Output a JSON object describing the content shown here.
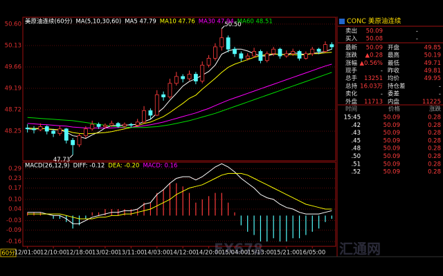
{
  "chart_data": [
    {
      "type": "candlestick",
      "title": "美原油连续(60分)",
      "subtitle": "MA(5,10,30,60)",
      "categories": [
        "12/01:00",
        null,
        null,
        null,
        "12/10:00",
        null,
        null,
        null,
        "12/18:00",
        null,
        null,
        null,
        "13/02:00",
        null,
        null,
        null,
        "13/11:00",
        null,
        null,
        null,
        "14/03:00",
        null,
        null,
        null,
        "14/12:00",
        null,
        null,
        null,
        "14/20:00",
        null,
        null,
        null,
        "15/04:00",
        null,
        null,
        null,
        "15/13:00",
        null,
        null,
        null,
        "15/21:00",
        null,
        null,
        null,
        "16/05:00",
        null,
        null,
        null
      ],
      "open": [
        48.32,
        48.3,
        48.28,
        48.35,
        48.25,
        48.2,
        48.3,
        48.05,
        47.95,
        48.15,
        48.3,
        48.4,
        48.35,
        48.38,
        48.42,
        48.36,
        48.4,
        48.38,
        48.45,
        48.7,
        48.6,
        49.05,
        49.0,
        49.3,
        49.45,
        49.4,
        49.5,
        49.35,
        49.7,
        49.85,
        50.1,
        50.3,
        50.05,
        49.95,
        49.85,
        49.9,
        50.0,
        49.8,
        49.95,
        50.05,
        49.9,
        49.95,
        50.0,
        49.85,
        49.95,
        50.05,
        50.0,
        50.15
      ],
      "high": [
        48.4,
        48.36,
        48.42,
        48.38,
        48.3,
        48.36,
        48.32,
        48.1,
        48.2,
        48.36,
        48.48,
        48.44,
        48.42,
        48.48,
        48.45,
        48.44,
        48.43,
        48.52,
        48.8,
        48.75,
        49.15,
        49.12,
        49.4,
        49.55,
        49.5,
        49.58,
        49.55,
        49.78,
        49.92,
        50.18,
        50.5,
        50.35,
        50.1,
        50.0,
        49.96,
        50.08,
        50.04,
        50.0,
        50.1,
        50.08,
        50.02,
        50.06,
        50.03,
        50.0,
        50.1,
        50.08,
        50.22,
        50.2
      ],
      "low": [
        48.22,
        48.2,
        48.25,
        48.18,
        48.12,
        48.15,
        47.98,
        47.73,
        47.9,
        48.1,
        48.26,
        48.3,
        48.3,
        48.34,
        48.32,
        48.32,
        48.33,
        48.35,
        48.42,
        48.52,
        48.58,
        48.92,
        48.96,
        49.25,
        49.32,
        49.36,
        49.28,
        49.3,
        49.65,
        49.8,
        50.02,
        49.98,
        49.88,
        49.78,
        49.8,
        49.86,
        49.74,
        49.76,
        49.9,
        49.84,
        49.86,
        49.9,
        49.8,
        49.82,
        49.9,
        49.94,
        49.97,
        50.04
      ],
      "close": [
        48.3,
        48.28,
        48.35,
        48.25,
        48.2,
        48.3,
        48.05,
        47.95,
        48.15,
        48.3,
        48.4,
        48.35,
        48.38,
        48.42,
        48.36,
        48.4,
        48.38,
        48.45,
        48.7,
        48.6,
        49.05,
        49.0,
        49.3,
        49.45,
        49.4,
        49.5,
        49.35,
        49.7,
        49.85,
        50.1,
        50.3,
        50.05,
        49.95,
        49.85,
        49.9,
        50.0,
        49.8,
        49.95,
        50.05,
        49.9,
        49.95,
        50.0,
        49.85,
        49.95,
        50.05,
        50.0,
        50.15,
        50.1
      ],
      "up_color": "#ff3c3c",
      "down_color": "#54fcfc",
      "annotations": [
        "50.50",
        "47.73"
      ],
      "series": [
        {
          "legend": "MA5 47.79",
          "color": "#ffffff",
          "values": [
            48.3,
            48.29,
            48.31,
            48.3,
            48.28,
            48.28,
            48.23,
            48.15,
            48.13,
            48.09,
            48.17,
            48.23,
            48.32,
            48.37,
            48.38,
            48.38,
            48.39,
            48.4,
            48.46,
            48.51,
            48.64,
            48.76,
            48.93,
            49.08,
            49.24,
            49.34,
            49.4,
            49.48,
            49.56,
            49.7,
            49.94,
            50.01,
            50.05,
            50.05,
            50.01,
            49.95,
            49.9,
            49.9,
            49.94,
            49.94,
            49.93,
            49.97,
            49.95,
            49.93,
            49.96,
            49.97,
            50.0,
            50.05
          ]
        },
        {
          "legend": "MA10 47.76",
          "color": "#ffff00",
          "values": [
            48.32,
            48.31,
            48.31,
            48.3,
            48.29,
            48.28,
            48.26,
            48.22,
            48.2,
            48.19,
            48.2,
            48.21,
            48.22,
            48.24,
            48.27,
            48.3,
            48.33,
            48.37,
            48.42,
            48.45,
            48.51,
            48.57,
            48.66,
            48.76,
            48.86,
            48.97,
            49.04,
            49.17,
            49.29,
            49.41,
            49.54,
            49.65,
            49.72,
            49.77,
            49.82,
            49.87,
            49.91,
            49.93,
            49.95,
            49.93,
            49.93,
            49.93,
            49.92,
            49.93,
            49.95,
            49.95,
            49.97,
            49.98
          ]
        },
        {
          "legend": "MA30 47.94",
          "color": "#ff00ff",
          "values": [
            48.42,
            48.41,
            48.4,
            48.39,
            48.38,
            48.37,
            48.36,
            48.34,
            48.33,
            48.32,
            48.32,
            48.32,
            48.32,
            48.32,
            48.33,
            48.33,
            48.34,
            48.35,
            48.37,
            48.39,
            48.42,
            48.45,
            48.49,
            48.53,
            48.57,
            48.61,
            48.65,
            48.7,
            48.75,
            48.81,
            48.87,
            48.93,
            48.98,
            49.03,
            49.08,
            49.13,
            49.18,
            49.23,
            49.28,
            49.33,
            49.38,
            49.43,
            49.48,
            49.53,
            49.58,
            49.63,
            49.68,
            49.72
          ]
        },
        {
          "legend": "MA60 48.51",
          "color": "#00e000",
          "values": [
            48.55,
            48.54,
            48.53,
            48.52,
            48.51,
            48.5,
            48.49,
            48.48,
            48.46,
            48.44,
            48.42,
            48.4,
            48.38,
            48.36,
            48.35,
            48.34,
            48.33,
            48.33,
            48.33,
            48.34,
            48.35,
            48.37,
            48.39,
            48.42,
            48.45,
            48.48,
            48.52,
            48.56,
            48.6,
            48.64,
            48.69,
            48.74,
            48.79,
            48.84,
            48.89,
            48.94,
            48.99,
            49.04,
            49.09,
            49.14,
            49.19,
            49.24,
            49.29,
            49.34,
            49.39,
            49.44,
            49.49,
            49.54
          ]
        }
      ],
      "ylim": [
        47.6,
        50.75
      ],
      "yticks": [
        {
          "value": 50.6,
          "label": "50.60"
        },
        {
          "value": 50.13,
          "label": "50.13"
        },
        {
          "value": 49.66,
          "label": "49.66"
        },
        {
          "value": 49.19,
          "label": "49.19"
        },
        {
          "value": 48.72,
          "label": "48.72"
        },
        {
          "value": 48.25,
          "label": "48.25"
        }
      ],
      "grid": true
    },
    {
      "type": "macd",
      "title": "MACD(26,12,9)",
      "lines": [
        {
          "legend": "DIFF: -0.12",
          "color": "#ffffff",
          "values": [
            0.02,
            0.02,
            0.02,
            0.01,
            0.0,
            0.0,
            -0.02,
            -0.05,
            -0.05,
            -0.03,
            -0.01,
            0.0,
            0.01,
            0.02,
            0.02,
            0.03,
            0.03,
            0.04,
            0.07,
            0.08,
            0.13,
            0.16,
            0.2,
            0.23,
            0.24,
            0.24,
            0.22,
            0.24,
            0.27,
            0.3,
            0.32,
            0.3,
            0.27,
            0.23,
            0.2,
            0.17,
            0.13,
            0.11,
            0.1,
            0.07,
            0.05,
            0.04,
            0.02,
            0.01,
            0.01,
            0.01,
            0.02,
            0.03
          ]
        },
        {
          "legend": "DEA: -0.20",
          "color": "#ffff00",
          "values": [
            0.01,
            0.01,
            0.01,
            0.01,
            0.01,
            0.01,
            0.0,
            -0.01,
            -0.02,
            -0.02,
            -0.02,
            -0.01,
            -0.01,
            0.0,
            0.0,
            0.01,
            0.01,
            0.02,
            0.03,
            0.04,
            0.06,
            0.08,
            0.1,
            0.13,
            0.15,
            0.17,
            0.18,
            0.19,
            0.21,
            0.23,
            0.25,
            0.26,
            0.26,
            0.26,
            0.25,
            0.23,
            0.21,
            0.19,
            0.17,
            0.15,
            0.13,
            0.11,
            0.09,
            0.07,
            0.06,
            0.05,
            0.04,
            0.04
          ]
        }
      ],
      "bars": {
        "legend": "MACD: 0.16",
        "color": "#ff00ff",
        "up_color": "#ff3c3c",
        "down_color": "#54fcfc",
        "values": [
          0.02,
          0.02,
          0.02,
          0.0,
          -0.02,
          -0.02,
          -0.04,
          -0.08,
          -0.06,
          -0.02,
          0.02,
          0.02,
          0.04,
          0.04,
          0.04,
          0.04,
          0.04,
          0.04,
          0.08,
          0.08,
          0.14,
          0.16,
          0.2,
          0.2,
          0.18,
          0.14,
          0.08,
          0.1,
          0.12,
          0.14,
          0.14,
          0.08,
          0.02,
          -0.06,
          -0.1,
          -0.12,
          -0.16,
          -0.16,
          -0.14,
          -0.16,
          -0.16,
          -0.14,
          -0.14,
          -0.12,
          -0.1,
          -0.08,
          -0.04,
          -0.02
        ]
      },
      "ylim": [
        -0.19,
        0.33
      ],
      "yticks": [
        0.29,
        0.23,
        0.17,
        {
          "value": 0.1,
          "label": "0.10"
        },
        0.04,
        -0.03,
        -0.09,
        -0.16
      ],
      "grid": true
    }
  ],
  "period_label": "60分",
  "watermark": [
    "FX678",
    "汇通网"
  ],
  "quote": {
    "title": "CONC 美原油连续",
    "rows": [
      [
        "卖出",
        "50.09",
        "-"
      ],
      [
        "买入",
        "50.08",
        "-"
      ],
      [
        "最新",
        "50.09",
        "开盘",
        "49.85"
      ],
      [
        "涨跌",
        "▲0.28",
        "最高",
        "50.19"
      ],
      [
        "涨幅",
        "▲0.56%",
        "最低",
        "49.71"
      ],
      [
        "现手",
        "-",
        "昨收",
        "49.81"
      ],
      [
        "总手",
        "13251",
        "均价",
        "49.95"
      ],
      [
        "总持",
        "16.03万",
        "持仓差",
        "-"
      ],
      [
        "卖化",
        "-",
        "委差",
        "-"
      ],
      [
        "外盘",
        "11713",
        "内盘",
        "11225"
      ]
    ],
    "tick_header": [
      "时间",
      "价格",
      "涨跌"
    ],
    "ticks": [
      [
        "15:45",
        "50.09",
        "0.28"
      ],
      [
        ".42",
        "50.09",
        "0.28"
      ],
      [
        ".43",
        "50.09",
        "0.28"
      ],
      [
        ".45",
        "50.09",
        "0.28"
      ],
      [
        ".48",
        "50.09",
        "0.28"
      ],
      [
        ".50",
        "50.09",
        "0.28"
      ],
      [
        ".51",
        "50.09",
        "0.28"
      ],
      [
        ".52",
        "50.09",
        "0.28"
      ]
    ]
  }
}
